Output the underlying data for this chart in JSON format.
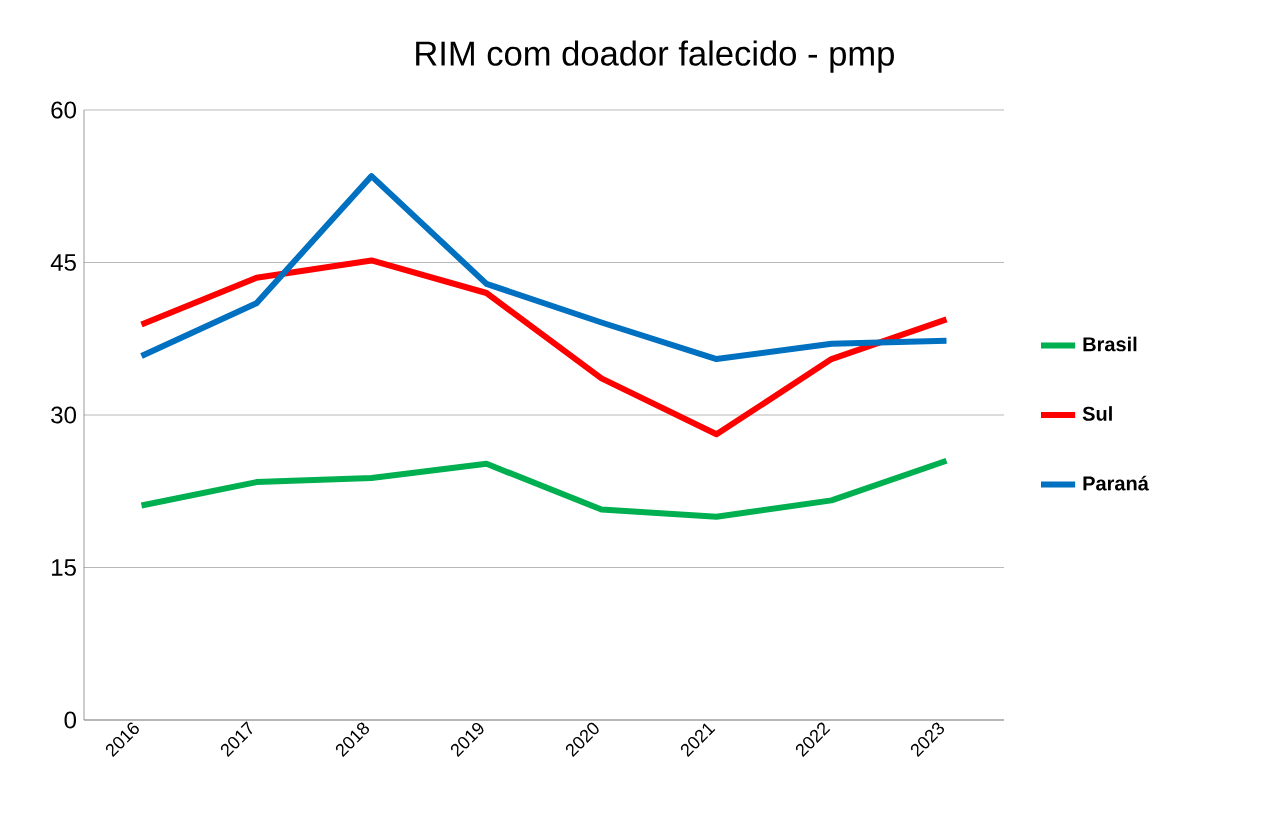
{
  "chart_data": {
    "type": "line",
    "title": "RIM com doador falecido - pmp",
    "categories": [
      "2016",
      "2017",
      "2018",
      "2019",
      "2020",
      "2021",
      "2022",
      "2023"
    ],
    "series": [
      {
        "name": "Brasil",
        "color": "#00b050",
        "values": [
          21.1,
          23.4,
          23.8,
          25.2,
          20.7,
          20.0,
          21.6,
          25.5
        ]
      },
      {
        "name": "Sul",
        "color": "#ff0000",
        "values": [
          38.9,
          43.5,
          45.2,
          42.0,
          33.6,
          28.1,
          35.5,
          39.4
        ]
      },
      {
        "name": "Paraná",
        "color": "#0070c0",
        "values": [
          35.8,
          41.0,
          53.5,
          42.9,
          39.1,
          35.5,
          37.0,
          37.3
        ]
      }
    ],
    "ylim": [
      0,
      60
    ],
    "yticks": [
      0,
      15,
      30,
      45,
      60
    ],
    "grid": "y",
    "legend": "right",
    "marker": "none",
    "line_style": "solid"
  }
}
